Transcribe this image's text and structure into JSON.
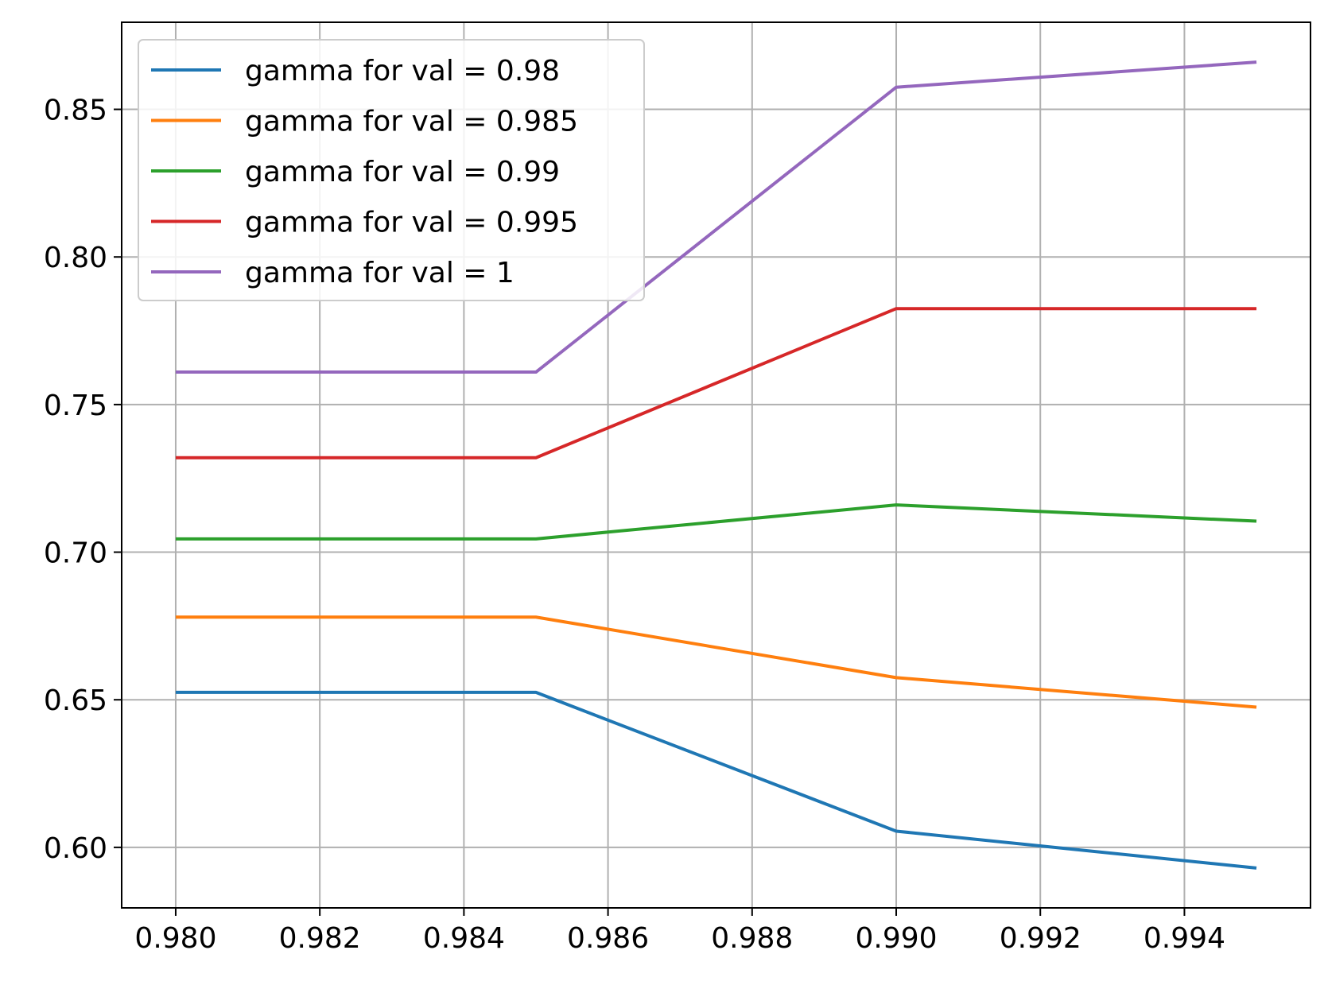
{
  "chart_data": {
    "type": "line",
    "title": "",
    "xlabel": "",
    "ylabel": "",
    "xlim": [
      0.97925,
      0.99575
    ],
    "ylim": [
      0.5795,
      0.8795
    ],
    "x_ticks": [
      "0.980",
      "0.982",
      "0.984",
      "0.986",
      "0.988",
      "0.990",
      "0.992",
      "0.994"
    ],
    "x_tick_values": [
      0.98,
      0.982,
      0.984,
      0.986,
      0.988,
      0.99,
      0.992,
      0.994
    ],
    "y_ticks": [
      "0.60",
      "0.65",
      "0.70",
      "0.75",
      "0.80",
      "0.85"
    ],
    "y_tick_values": [
      0.6,
      0.65,
      0.7,
      0.75,
      0.8,
      0.85
    ],
    "grid": true,
    "legend_position": "top-left",
    "x": [
      0.98,
      0.985,
      0.99,
      0.995
    ],
    "series": [
      {
        "name": "gamma for val = 0.98",
        "color": "#1f77b4",
        "values": [
          0.6525,
          0.6525,
          0.6055,
          0.593
        ]
      },
      {
        "name": "gamma for val = 0.985",
        "color": "#ff7f0e",
        "values": [
          0.678,
          0.678,
          0.6575,
          0.6475
        ]
      },
      {
        "name": "gamma for val = 0.99",
        "color": "#2ca02c",
        "values": [
          0.7045,
          0.7045,
          0.716,
          0.7105
        ]
      },
      {
        "name": "gamma for val = 0.995",
        "color": "#d62728",
        "values": [
          0.732,
          0.732,
          0.7825,
          0.7825
        ]
      },
      {
        "name": "gamma for val = 1",
        "color": "#9467bd",
        "values": [
          0.761,
          0.761,
          0.8575,
          0.866
        ]
      }
    ]
  }
}
